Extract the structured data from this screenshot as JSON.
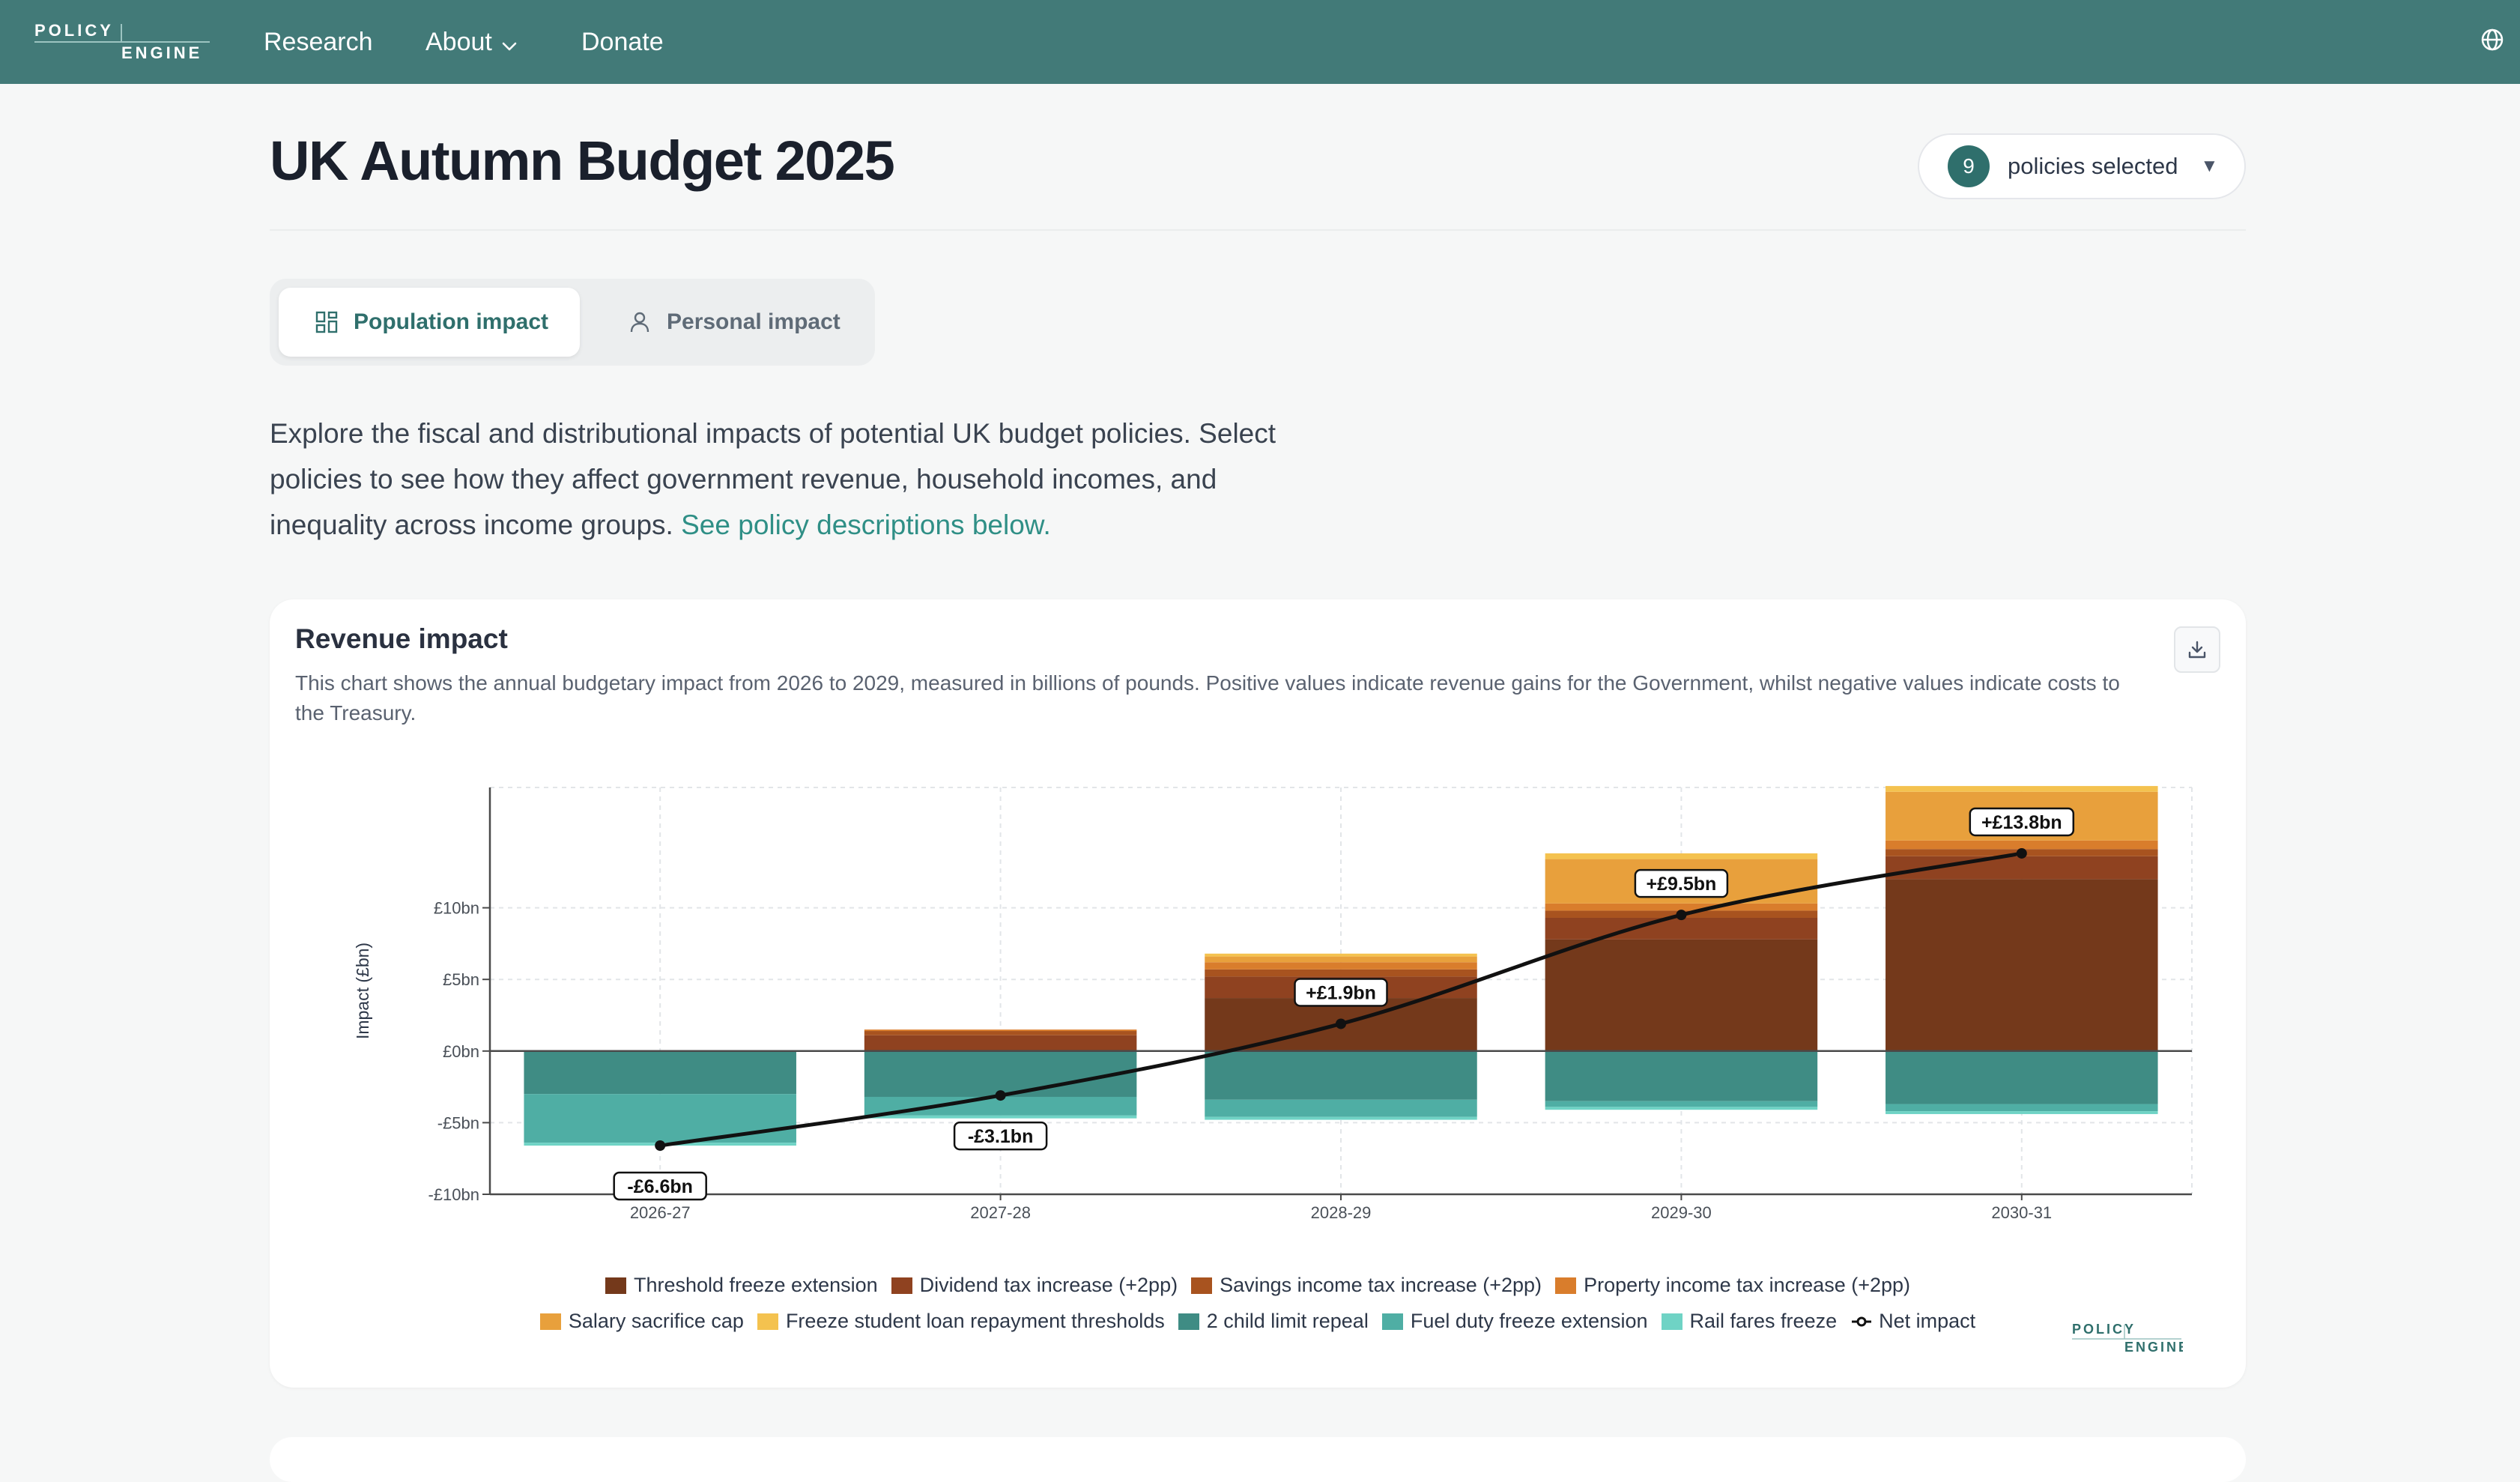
{
  "nav": {
    "logo_top": "POLICY",
    "logo_bottom": "ENGINE",
    "links": [
      "Research",
      "About",
      "Donate"
    ]
  },
  "header": {
    "title": "UK Autumn Budget 2025",
    "policy_count": "9",
    "policy_label": "policies selected"
  },
  "tabs": [
    {
      "label": "Population impact",
      "active": true,
      "icon": "grid-icon"
    },
    {
      "label": "Personal impact",
      "active": false,
      "icon": "person-icon"
    }
  ],
  "intro": {
    "text": "Explore the fiscal and distributional impacts of potential UK budget policies. Select policies to see how they affect government revenue, household incomes, and inequality across income groups. ",
    "link": "See policy descriptions below."
  },
  "card": {
    "title": "Revenue impact",
    "description": "This chart shows the annual budgetary impact from 2026 to 2029, measured in billions of pounds. Positive values indicate revenue gains for the Government, whilst negative values indicate costs to the Treasury.",
    "watermark_top": "POLICY",
    "watermark_bottom": "ENGINE"
  },
  "colors": {
    "nav": "#427a78",
    "accent": "#2f6f6c",
    "link": "#2f8f86"
  },
  "chart_data": {
    "type": "bar",
    "stacked": true,
    "ylabel": "Impact (£bn)",
    "ylim": [
      -10,
      18.4
    ],
    "yticks": [
      -10,
      -5,
      0,
      5,
      10
    ],
    "ytick_labels": [
      "-£10bn",
      "-£5bn",
      "£0bn",
      "£5bn",
      "£10bn"
    ],
    "grid": true,
    "legend_position": "bottom",
    "categories": [
      "2026-27",
      "2027-28",
      "2028-29",
      "2029-30",
      "2030-31"
    ],
    "series": [
      {
        "name": "Threshold freeze extension",
        "color": "#74391b",
        "values": [
          0,
          0,
          3.7,
          7.8,
          12.0
        ]
      },
      {
        "name": "Dividend tax increase (+2pp)",
        "color": "#8f4220",
        "values": [
          0,
          1.1,
          1.5,
          1.5,
          1.6
        ]
      },
      {
        "name": "Savings income tax increase (+2pp)",
        "color": "#a8531f",
        "values": [
          0,
          0.3,
          0.5,
          0.5,
          0.5
        ]
      },
      {
        "name": "Property income tax increase (+2pp)",
        "color": "#d97d2c",
        "values": [
          0,
          0.1,
          0.5,
          0.5,
          0.6
        ]
      },
      {
        "name": "Salary sacrifice cap",
        "color": "#e8a03c",
        "values": [
          0,
          0,
          0.4,
          3.1,
          3.4
        ]
      },
      {
        "name": "Freeze student loan repayment thresholds",
        "color": "#f4c24f",
        "values": [
          0,
          0,
          0.2,
          0.4,
          0.4
        ]
      },
      {
        "name": "2 child limit repeal",
        "color": "#3f8c84",
        "values": [
          -3.0,
          -3.2,
          -3.4,
          -3.5,
          -3.7
        ]
      },
      {
        "name": "Fuel duty freeze extension",
        "color": "#4faea4",
        "values": [
          -3.4,
          -1.3,
          -1.2,
          -0.4,
          -0.5
        ]
      },
      {
        "name": "Rail fares freeze",
        "color": "#6fd3c5",
        "values": [
          -0.2,
          -0.2,
          -0.2,
          -0.2,
          -0.2
        ]
      }
    ],
    "net_impact": {
      "name": "Net impact",
      "values": [
        -6.6,
        -3.1,
        1.9,
        9.5,
        13.8
      ],
      "labels": [
        "-£6.6bn",
        "-£3.1bn",
        "+£1.9bn",
        "+£9.5bn",
        "+£13.8bn"
      ]
    }
  }
}
